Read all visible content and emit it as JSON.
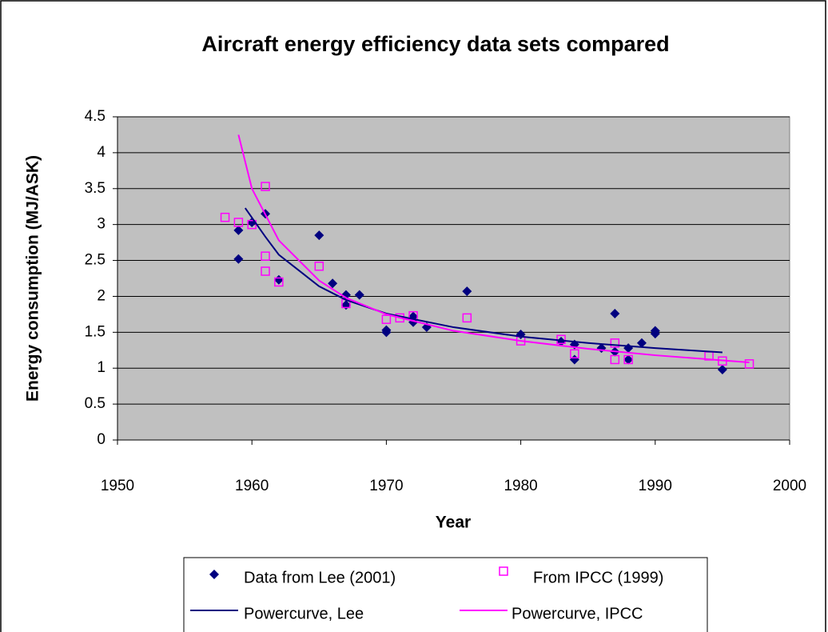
{
  "chart_data": {
    "type": "scatter",
    "title": "Aircraft energy efficiency data sets compared",
    "x_label": "Year",
    "y_label": "Energy consumption (MJ/ASK)",
    "xlim": [
      1950,
      2000
    ],
    "xticks": [
      1950,
      1960,
      1970,
      1980,
      1990,
      2000
    ],
    "ylim": [
      0,
      4.5
    ],
    "yticks": [
      0,
      0.5,
      1,
      1.5,
      2,
      2.5,
      3,
      3.5,
      4,
      4.5
    ],
    "grid": true,
    "legend": "bottom",
    "series": [
      {
        "name": "Data from Lee (2001)",
        "kind": "marker",
        "marker": "diamond",
        "color": "#000080",
        "x": [
          1959,
          1959,
          1960,
          1961,
          1962,
          1965,
          1966,
          1967,
          1967,
          1968,
          1970,
          1970,
          1972,
          1972,
          1973,
          1976,
          1980,
          1983,
          1984,
          1984,
          1986,
          1987,
          1987,
          1988,
          1988,
          1989,
          1990,
          1990,
          1995
        ],
        "values": [
          2.92,
          2.52,
          3.03,
          3.15,
          2.23,
          2.85,
          2.18,
          2.02,
          1.88,
          2.02,
          1.53,
          1.5,
          1.72,
          1.64,
          1.57,
          2.07,
          1.47,
          1.37,
          1.33,
          1.12,
          1.28,
          1.76,
          1.23,
          1.28,
          1.12,
          1.35,
          1.52,
          1.48,
          0.98
        ]
      },
      {
        "name": "From IPCC (1999)",
        "kind": "marker",
        "marker": "square",
        "color": "#ff00ff",
        "x": [
          1958,
          1959,
          1960,
          1961,
          1961,
          1961,
          1962,
          1965,
          1967,
          1970,
          1971,
          1972,
          1976,
          1980,
          1983,
          1984,
          1987,
          1987,
          1988,
          1994,
          1995,
          1997
        ],
        "values": [
          3.1,
          3.03,
          3.0,
          3.53,
          2.56,
          2.35,
          2.2,
          2.42,
          1.9,
          1.68,
          1.7,
          1.73,
          1.7,
          1.38,
          1.4,
          1.2,
          1.35,
          1.12,
          1.12,
          1.17,
          1.1,
          1.06
        ]
      },
      {
        "name": "Powercurve, Lee",
        "kind": "line",
        "color": "#000080",
        "x": [
          1959.5,
          1961,
          1962,
          1965,
          1967,
          1970,
          1975,
          1980,
          1985,
          1990,
          1995
        ],
        "values": [
          3.23,
          2.83,
          2.58,
          2.14,
          1.95,
          1.76,
          1.57,
          1.44,
          1.35,
          1.28,
          1.22
        ]
      },
      {
        "name": "Powercurve, IPCC",
        "kind": "line",
        "color": "#ff00ff",
        "x": [
          1959,
          1960,
          1962,
          1965,
          1967,
          1970,
          1975,
          1980,
          1985,
          1990,
          1997
        ],
        "values": [
          4.25,
          3.5,
          2.78,
          2.22,
          1.98,
          1.75,
          1.52,
          1.38,
          1.27,
          1.18,
          1.08
        ]
      }
    ]
  }
}
